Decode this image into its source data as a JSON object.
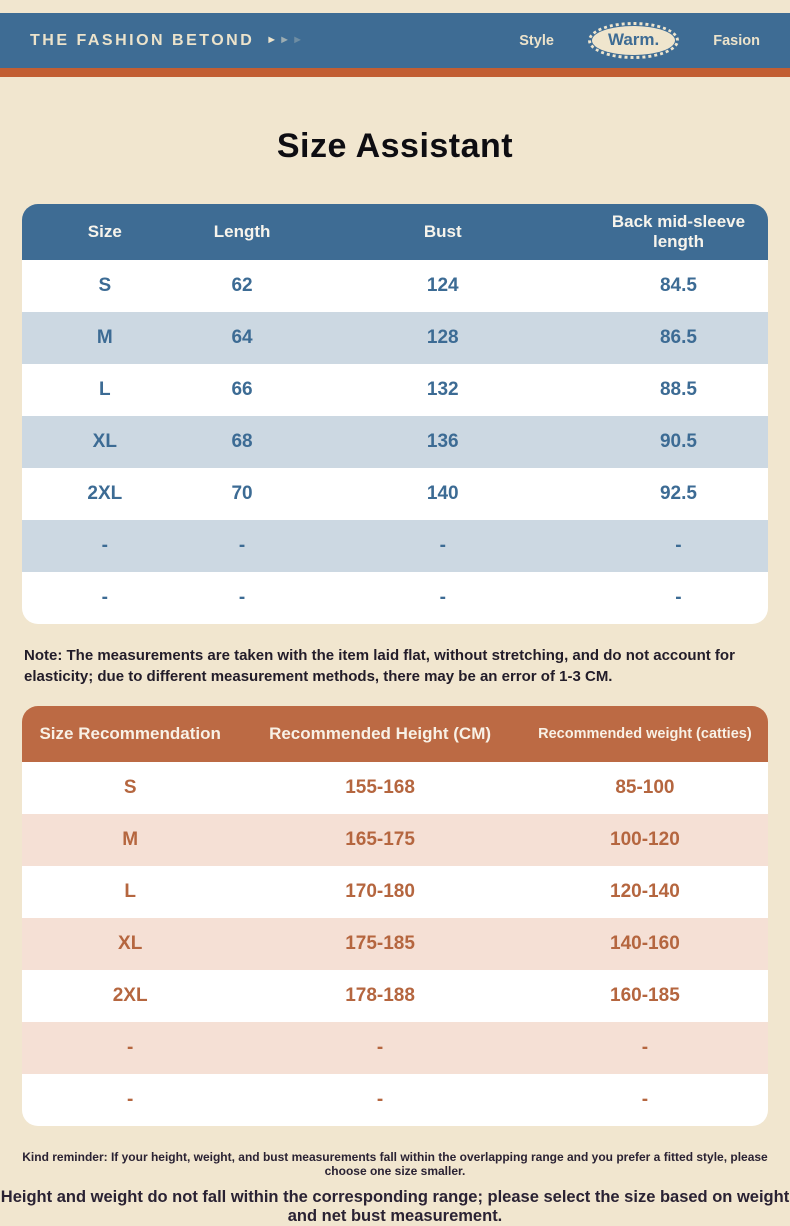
{
  "header": {
    "brand": "THE FASHION BETOND",
    "arrow_glyph": "►",
    "nav": {
      "style_label": "Style",
      "warm_label": "Warm.",
      "fasion_label": "Fasion"
    },
    "bar_color": "#3e6c94",
    "accent_color": "#c25e32",
    "text_color": "#ece3cb"
  },
  "title": "Size Assistant",
  "size_table": {
    "columns": [
      "Size",
      "Length",
      "Bust",
      "Back mid-sleeve length"
    ],
    "rows": [
      [
        "S",
        "62",
        "124",
        "84.5"
      ],
      [
        "M",
        "64",
        "128",
        "86.5"
      ],
      [
        "L",
        "66",
        "132",
        "88.5"
      ],
      [
        "XL",
        "68",
        "136",
        "90.5"
      ],
      [
        "2XL",
        "70",
        "140",
        "92.5"
      ],
      [
        "-",
        "-",
        "-",
        "-"
      ],
      [
        "-",
        "-",
        "-",
        "-"
      ]
    ],
    "header_bg": "#3e6c94",
    "alt_row_bg": "#ccd8e2",
    "value_color": "#3c6b94"
  },
  "note": "Note: The measurements are taken with the item laid flat, without stretching, and do not account for elasticity; due to different measurement methods, there may be an error of 1-3 CM.",
  "recommend_table": {
    "columns": [
      "Size Recommendation",
      "Recommended Height (CM)",
      "Recommended weight (catties)"
    ],
    "rows": [
      [
        "S",
        "155-168",
        "85-100"
      ],
      [
        "M",
        "165-175",
        "100-120"
      ],
      [
        "L",
        "170-180",
        "120-140"
      ],
      [
        "XL",
        "175-185",
        "140-160"
      ],
      [
        "2XL",
        "178-188",
        "160-185"
      ],
      [
        "-",
        "-",
        "-"
      ],
      [
        "-",
        "-",
        "-"
      ]
    ],
    "header_bg": "#bc6a44",
    "alt_row_bg": "#f5e0d5",
    "value_color": "#b5663f"
  },
  "footnotes": {
    "kind_reminder": "Kind reminder: If your height, weight, and bust measurements fall within the overlapping range and you prefer a fitted style, please choose one size smaller.",
    "bold_note": "Height and weight do not fall within the corresponding range; please select the size based on weight and net bust measurement."
  },
  "page": {
    "background": "#f1e6cf"
  }
}
